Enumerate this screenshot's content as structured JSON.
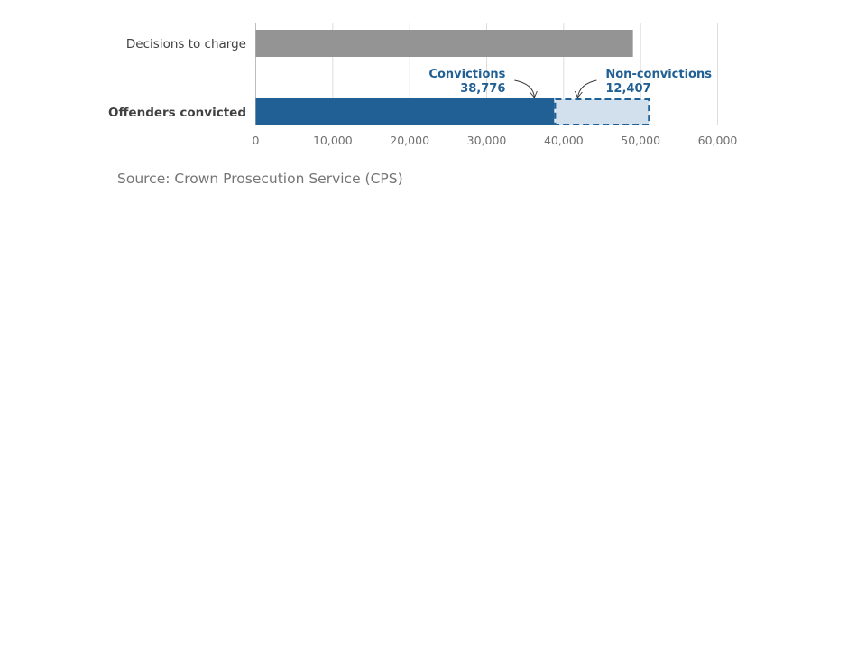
{
  "chart_data": {
    "type": "bar",
    "orientation": "horizontal",
    "stacked": true,
    "categories": [
      "Decisions to charge",
      "Offenders convicted"
    ],
    "series": [
      {
        "name": "Decisions to charge",
        "values": [
          49000,
          null
        ],
        "color": "#949494",
        "style": "solid"
      },
      {
        "name": "Convictions",
        "values": [
          null,
          38776
        ],
        "color": "#206095",
        "style": "solid"
      },
      {
        "name": "Non-convictions",
        "values": [
          null,
          12407
        ],
        "color": "#d2dfec",
        "border_color": "#206095",
        "style": "dashed"
      }
    ],
    "xlim": [
      0,
      60000
    ],
    "x_ticks": [
      0,
      10000,
      20000,
      30000,
      40000,
      50000,
      60000
    ],
    "x_tick_labels": [
      "0",
      "10,000",
      "20,000",
      "30,000",
      "40,000",
      "50,000",
      "60,000"
    ],
    "grid": true,
    "annotations": [
      {
        "series": "Convictions",
        "label": "Convictions",
        "value_label": "38,776",
        "side": "left"
      },
      {
        "series": "Non-convictions",
        "label": "Non-convictions",
        "value_label": "12,407",
        "side": "right"
      }
    ],
    "title": "",
    "xlabel": "",
    "ylabel": ""
  },
  "source_text": "Source: Crown Prosecution Service (CPS)",
  "colors": {
    "grid": "#dddddd",
    "axis": "#bdbdbd",
    "tick_label": "#707070",
    "category_label": "#414042",
    "annotation": "#206095",
    "arrow": "#333333"
  }
}
